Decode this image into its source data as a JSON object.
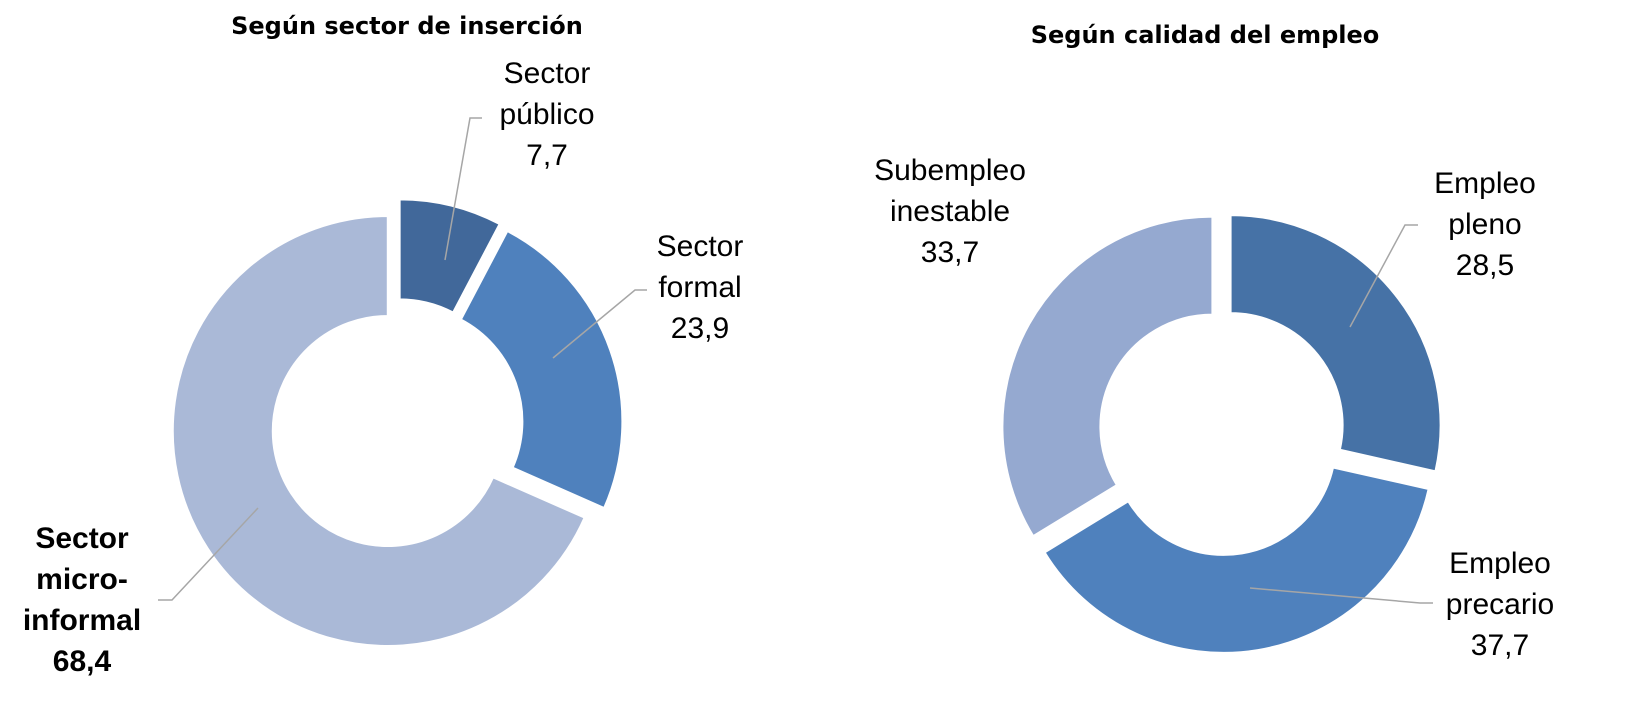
{
  "chart_data": [
    {
      "type": "pie",
      "title": "Según sector de inserción",
      "categories": [
        "Sector público",
        "Sector formal",
        "Sector micro-informal"
      ],
      "values": [
        7.7,
        23.9,
        68.4
      ],
      "value_labels": [
        "7,7",
        "23,9",
        "68,4"
      ],
      "colors": [
        "#41689a",
        "#4f81bd",
        "#aab9d7"
      ]
    },
    {
      "type": "pie",
      "title": "Según calidad del empleo",
      "categories": [
        "Empleo pleno",
        "Empleo precario",
        "Subempleo inestable"
      ],
      "values": [
        28.5,
        37.7,
        33.7
      ],
      "value_labels": [
        "28,5",
        "37,7",
        "33,7"
      ],
      "colors": [
        "#4672a6",
        "#4f81bd",
        "#95a9d0"
      ]
    }
  ]
}
